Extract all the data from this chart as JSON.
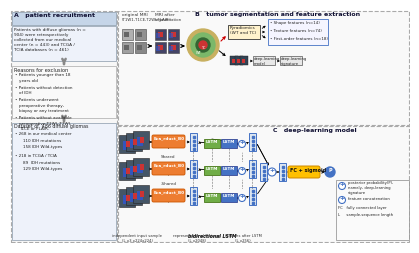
{
  "bg_color": "#ffffff",
  "panel_A_title": "A   patient recruitment",
  "panel_B_title": "B   tumor segmentation and feature extraction",
  "panel_C_title": "C   deep-learning model",
  "panel_A_text1": "Patients with diffuse gliomas (n =\n904) were retrospectively\ncollected from our medical\ncenter (n = 443) and TCGA /\nTCIA databases (n = 461)",
  "panel_A_text2": "Reasons for exclusion",
  "panel_A_bullets": [
    "Patients younger than 18\nyears old",
    "Patients without detection\nof IDH",
    "Patients underwent\npreoperative therapy,\nbiopsy or any treatment",
    "Patients without available\npreoperative T1WI, T2WI,\nT1CE or FLAIR."
  ],
  "panel_A_text3": "Dataset of  486 diffuse gliomas",
  "panel_A_sub1": "268 in our medical center",
  "panel_A_sub1a": "110 IDH mutations",
  "panel_A_sub1b": "158 IDH Wild-types",
  "panel_A_sub2": "218 in TCGA / TCIA",
  "panel_A_sub2a": "89  IDH mutations",
  "panel_A_sub2b": "129 IDH Wild-types",
  "pyradiomics_label": "Pyradiomics\n(WT and TC)",
  "feature_labels": [
    "Shape features (n=14)",
    "Texture features (n=74)",
    "First-order features (n=18)"
  ],
  "dl_model_label": "deep-learning\nmodel",
  "dl_sig_label": "deep-learning\nsignature",
  "eca_label": "Eca_rduct_B0",
  "shared_label": "Shared",
  "neg_shared_label": "-Shared",
  "bidirectional_label": "bidirectional LSTM",
  "fc_label": "FC + sigmoid",
  "p_label": "P",
  "bottom_labels": [
    "independent input sample",
    "(L x3 x224x224)",
    "representational features",
    "(L x2048)",
    "features after LSTM",
    "(L x256)"
  ],
  "legend_items": [
    "posterior probability(P),",
    "namely, deep-learning",
    "signature",
    "feature concatenation",
    "FC   fully connected layer",
    "L     sample-sequence length"
  ],
  "lstm_green": "#70ad47",
  "lstm_blue": "#4472c4",
  "eca_color": "#ed7d31",
  "fc_color": "#ffc000",
  "feat_col_bg": "#dce6f1",
  "feat_col_border": "#4472c4",
  "orig_mri_label": "original MRI",
  "orig_mri_sub": "(T1W1,T1CE,T2WI,FLAIR)",
  "seg_label": "MRI after",
  "seg_sub": "segmentation"
}
